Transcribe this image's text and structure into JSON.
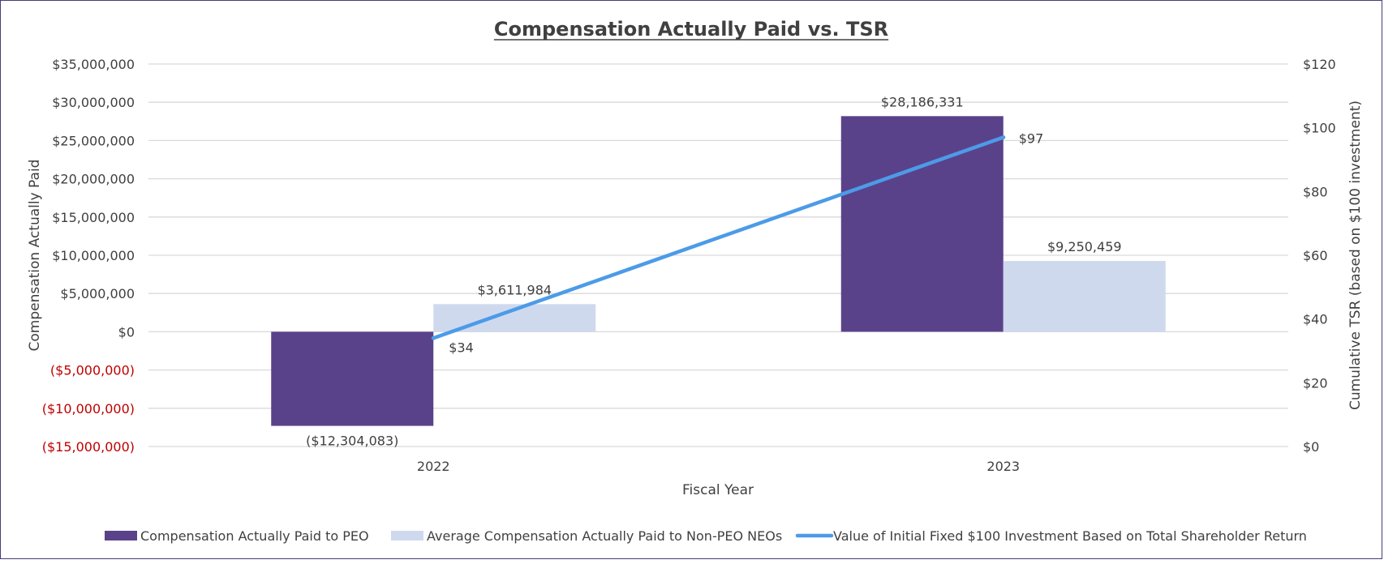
{
  "chart_data": {
    "type": "bar",
    "title": "Compensation Actually Paid vs. TSR",
    "xlabel": "Fiscal Year",
    "ylabel": "Compensation Actually Paid",
    "y2label": "Cumulative TSR (based on $100 investment)",
    "categories": [
      "2022",
      "2023"
    ],
    "ylim": [
      -15000000,
      35000000
    ],
    "y2lim": [
      0,
      120
    ],
    "yticks": [
      35000000,
      30000000,
      25000000,
      20000000,
      15000000,
      10000000,
      5000000,
      0,
      -5000000,
      -10000000,
      -15000000
    ],
    "ytick_labels": [
      "$35,000,000",
      "$30,000,000",
      "$25,000,000",
      "$20,000,000",
      "$15,000,000",
      "$10,000,000",
      "$5,000,000",
      "$0",
      "($5,000,000)",
      "($10,000,000)",
      "($15,000,000)"
    ],
    "y2ticks": [
      120,
      100,
      80,
      60,
      40,
      20,
      0
    ],
    "y2tick_labels": [
      "$120",
      "$100",
      "$80",
      "$60",
      "$40",
      "$20",
      "$0"
    ],
    "grid": true,
    "legend_position": "bottom",
    "series": [
      {
        "name": "Compensation Actually Paid to PEO",
        "type": "bar",
        "axis": "left",
        "color": "#5a428a",
        "values": [
          -12304083,
          28186331
        ],
        "labels": [
          "($12,304,083)",
          "$28,186,331"
        ],
        "label_colors": [
          "#c00000",
          "#404040"
        ]
      },
      {
        "name": "Average Compensation Actually Paid to Non-PEO NEOs",
        "type": "bar",
        "axis": "left",
        "color": "#cfd9ee",
        "values": [
          3611984,
          9250459
        ],
        "labels": [
          "$3,611,984",
          "$9,250,459"
        ],
        "label_colors": [
          "#404040",
          "#404040"
        ]
      },
      {
        "name": "Value of Initial Fixed $100 Investment Based on Total Shareholder Return",
        "type": "line",
        "axis": "right",
        "color": "#4c9be8",
        "values": [
          34,
          97
        ],
        "labels": [
          "$34",
          "$97"
        ],
        "label_colors": [
          "#404040",
          "#404040"
        ]
      }
    ]
  },
  "colors": {
    "grid": "#d9d9d9",
    "text": "#404040",
    "negative": "#c00000",
    "frame": "#4a3a7a"
  }
}
